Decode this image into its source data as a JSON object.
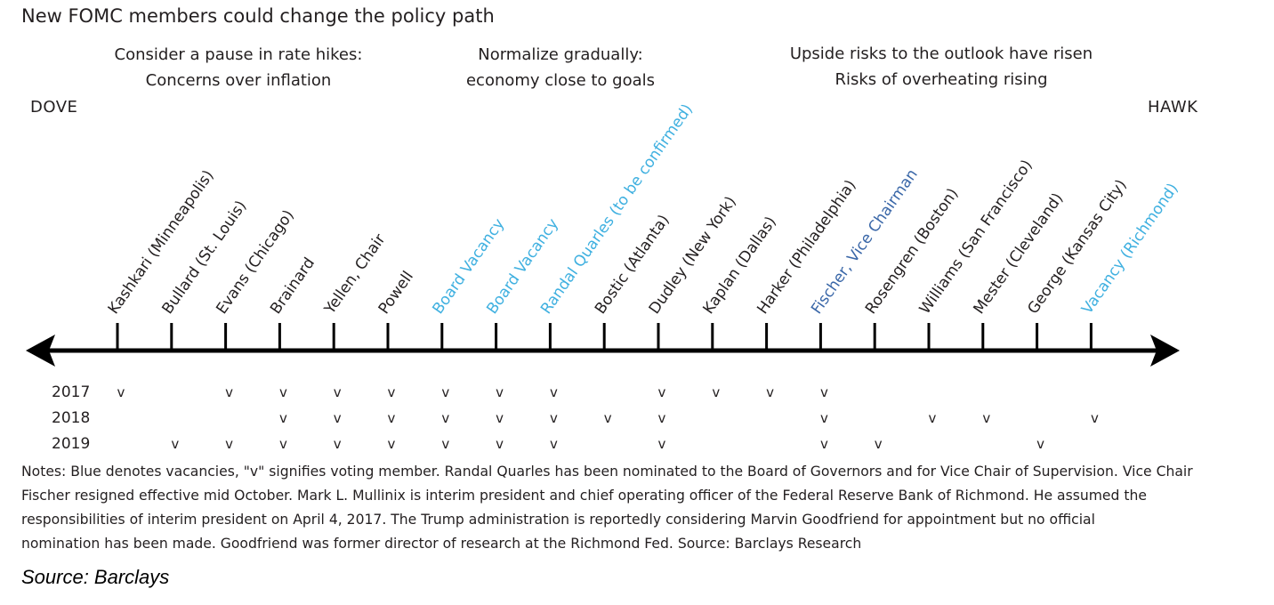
{
  "title": "New FOMC members could change the policy path",
  "headers": {
    "left": [
      "Consider a pause in rate hikes:",
      "Concerns over inflation"
    ],
    "middle": [
      "Normalize gradually:",
      "economy close to goals"
    ],
    "right": [
      "Upside risks to the outlook have risen",
      "Risks of overheating rising"
    ]
  },
  "poles": {
    "dove": "DOVE",
    "hawk": "HAWK"
  },
  "colors": {
    "default": "#231f20",
    "blue": "#3fb0e0",
    "navy": "#3a67a8"
  },
  "years": [
    "2017",
    "2018",
    "2019"
  ],
  "vote_mark": "v",
  "members": [
    {
      "name": "Kashkari (Minneapolis)",
      "color": "default",
      "votes": [
        true,
        false,
        false
      ]
    },
    {
      "name": "Bullard (St. Louis)",
      "color": "default",
      "votes": [
        false,
        false,
        true
      ]
    },
    {
      "name": "Evans (Chicago)",
      "color": "default",
      "votes": [
        true,
        false,
        true
      ]
    },
    {
      "name": "Brainard",
      "color": "default",
      "votes": [
        true,
        true,
        true
      ]
    },
    {
      "name": "Yellen, Chair",
      "color": "default",
      "votes": [
        true,
        true,
        true
      ]
    },
    {
      "name": "Powell",
      "color": "default",
      "votes": [
        true,
        true,
        true
      ]
    },
    {
      "name": "Board Vacancy",
      "color": "blue",
      "votes": [
        true,
        true,
        true
      ]
    },
    {
      "name": "Board Vacancy",
      "color": "blue",
      "votes": [
        true,
        true,
        true
      ]
    },
    {
      "name": "Randal Quarles (to be confirmed)",
      "color": "blue",
      "votes": [
        true,
        true,
        true
      ]
    },
    {
      "name": "Bostic (Atlanta)",
      "color": "default",
      "votes": [
        false,
        true,
        false
      ]
    },
    {
      "name": "Dudley (New York)",
      "color": "default",
      "votes": [
        true,
        true,
        true
      ]
    },
    {
      "name": "Kaplan (Dallas)",
      "color": "default",
      "votes": [
        true,
        false,
        false
      ]
    },
    {
      "name": "Harker (Philadelphia)",
      "color": "default",
      "votes": [
        true,
        false,
        false
      ]
    },
    {
      "name": "Fischer, Vice Chairman",
      "color": "navy",
      "votes": [
        true,
        true,
        true
      ]
    },
    {
      "name": "Rosengren (Boston)",
      "color": "default",
      "votes": [
        false,
        false,
        true
      ]
    },
    {
      "name": "Williams (San Francisco)",
      "color": "default",
      "votes": [
        false,
        true,
        false
      ]
    },
    {
      "name": "Mester (Cleveland)",
      "color": "default",
      "votes": [
        false,
        true,
        false
      ]
    },
    {
      "name": "George (Kansas City)",
      "color": "default",
      "votes": [
        false,
        false,
        true
      ]
    },
    {
      "name": "Vacancy (Richmond)",
      "color": "blue",
      "votes": [
        false,
        true,
        false
      ]
    }
  ],
  "notes": [
    "Notes: Blue denotes vacancies, \"v\" signifies voting member. Randal Quarles has been nominated to the Board of Governors and for Vice Chair of Supervision. Vice Chair",
    "Fischer resigned effective mid October. Mark L. Mullinix is interim president and chief operating officer of the Federal Reserve Bank of Richmond. He assumed the",
    "responsibilities of interim president on April 4, 2017. The Trump administration is reportedly considering Marvin Goodfriend for appointment but no official",
    "nomination has been made. Goodfriend was former director of research at the Richmond Fed. Source: Barclays Research"
  ],
  "source": "Source: Barclays"
}
